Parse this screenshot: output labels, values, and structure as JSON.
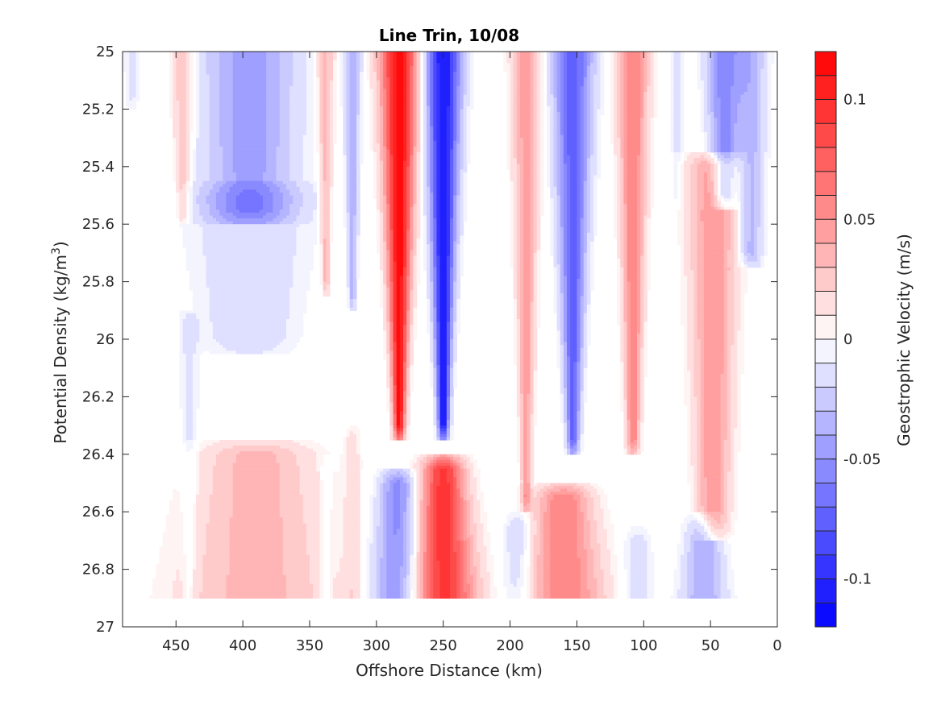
{
  "chart_data": {
    "type": "heatmap",
    "title": "Line Trin, 10/08",
    "xlabel": "Offshore Distance (km)",
    "ylabel_main": "Potential Density (kg/m",
    "ylabel_sup": "3",
    "ylabel_end": ")",
    "colorbar_label": "Geostrophic Velocity (m/s)",
    "xlim": [
      490,
      0
    ],
    "ylim": [
      25,
      27
    ],
    "x_reversed": true,
    "y_reversed": true,
    "x_ticks": [
      {
        "value": 450,
        "label": "450"
      },
      {
        "value": 400,
        "label": "400"
      },
      {
        "value": 350,
        "label": "350"
      },
      {
        "value": 300,
        "label": "300"
      },
      {
        "value": 250,
        "label": "250"
      },
      {
        "value": 200,
        "label": "200"
      },
      {
        "value": 150,
        "label": "150"
      },
      {
        "value": 100,
        "label": "100"
      },
      {
        "value": 50,
        "label": "50"
      },
      {
        "value": 0,
        "label": "0"
      }
    ],
    "y_ticks": [
      {
        "value": 25,
        "label": "25"
      },
      {
        "value": 25.2,
        "label": "25.2"
      },
      {
        "value": 25.4,
        "label": "25.4"
      },
      {
        "value": 25.6,
        "label": "25.6"
      },
      {
        "value": 25.8,
        "label": "25.8"
      },
      {
        "value": 26,
        "label": "26"
      },
      {
        "value": 26.2,
        "label": "26.2"
      },
      {
        "value": 26.4,
        "label": "26.4"
      },
      {
        "value": 26.6,
        "label": "26.6"
      },
      {
        "value": 26.8,
        "label": "26.8"
      },
      {
        "value": 27,
        "label": "27"
      }
    ],
    "colorbar": {
      "range": [
        -0.12,
        0.12
      ],
      "levels": 24,
      "negative_color": "#0000ff",
      "positive_color": "#ff0000",
      "ticks": [
        {
          "value": 0.1,
          "label": "0.1"
        },
        {
          "value": 0.05,
          "label": "0.05"
        },
        {
          "value": 0,
          "label": "0"
        },
        {
          "value": -0.05,
          "label": "-0.05"
        },
        {
          "value": -0.1,
          "label": "-0.1"
        }
      ]
    },
    "data_bottom": 26.9,
    "features": [
      {
        "x": 483,
        "xw": 8,
        "y0": 25.0,
        "y1": 25.15,
        "v": -0.012,
        "taper": 0.2
      },
      {
        "x": 445,
        "xw": 11,
        "y0": 25.0,
        "y1": 25.55,
        "v": 0.03,
        "taper": 0.5
      },
      {
        "x": 440,
        "xw": 9,
        "y0": 25.95,
        "y1": 26.9,
        "v": -0.012,
        "taper": 0.4
      },
      {
        "x": 395,
        "xw": 42,
        "y0": 25.0,
        "y1": 25.55,
        "v": -0.045,
        "taper": 0.1
      },
      {
        "x": 395,
        "xw": 55,
        "y0": 25.5,
        "y1": 26.0,
        "v": -0.02,
        "taper": 0.3
      },
      {
        "x": 338,
        "xw": 8,
        "y0": 25.0,
        "y1": 25.8,
        "v": 0.035,
        "taper": 0.6
      },
      {
        "x": 318,
        "xw": 8,
        "y0": 25.0,
        "y1": 25.85,
        "v": -0.035,
        "taper": 0.6
      },
      {
        "x": 283,
        "xw": 17,
        "y0": 25.0,
        "y1": 26.3,
        "v": 0.115,
        "taper": 0.7
      },
      {
        "x": 250,
        "xw": 16,
        "y0": 25.0,
        "y1": 26.3,
        "v": -0.11,
        "taper": 0.7
      },
      {
        "x": 188,
        "xw": 13,
        "y0": 25.0,
        "y1": 26.55,
        "v": 0.045,
        "taper": 0.7
      },
      {
        "x": 153,
        "xw": 18,
        "y0": 25.0,
        "y1": 26.35,
        "v": -0.075,
        "taper": 0.7
      },
      {
        "x": 108,
        "xw": 14,
        "y0": 25.0,
        "y1": 26.35,
        "v": 0.06,
        "taper": 0.6
      },
      {
        "x": 40,
        "xw": 16,
        "y0": 25.0,
        "y1": 25.5,
        "v": -0.055,
        "taper": 0.4
      },
      {
        "x": 20,
        "xw": 14,
        "y0": 25.0,
        "y1": 25.7,
        "v": -0.035,
        "taper": 0.3
      },
      {
        "x": 75,
        "xw": 6,
        "y0": 25.0,
        "y1": 25.5,
        "v": -0.012,
        "taper": 0.3
      },
      {
        "x": 48,
        "xw": 22,
        "y0": 25.4,
        "y1": 26.65,
        "v": 0.05,
        "taper": 0.4
      },
      {
        "x": 390,
        "xw": 48,
        "y0": 26.4,
        "y1": 26.9,
        "v": 0.035,
        "taper": -0.4
      },
      {
        "x": 338,
        "xw": 4,
        "y0": 26.45,
        "y1": 26.9,
        "v": -0.012,
        "taper": -0.3
      },
      {
        "x": 318,
        "xw": 7,
        "y0": 26.35,
        "y1": 26.9,
        "v": 0.015,
        "taper": 0.0
      },
      {
        "x": 284,
        "xw": 15,
        "y0": 26.5,
        "y1": 26.9,
        "v": -0.055,
        "taper": -0.5
      },
      {
        "x": 250,
        "xw": 18,
        "y0": 26.45,
        "y1": 26.9,
        "v": 0.095,
        "taper": -0.6
      },
      {
        "x": 193,
        "xw": 12,
        "y0": 26.65,
        "y1": 26.9,
        "v": -0.025,
        "taper": -0.4
      },
      {
        "x": 160,
        "xw": 24,
        "y0": 26.55,
        "y1": 26.9,
        "v": 0.06,
        "taper": -0.5
      },
      {
        "x": 105,
        "xw": 12,
        "y0": 26.7,
        "y1": 26.9,
        "v": -0.015,
        "taper": -0.3
      },
      {
        "x": 55,
        "xw": 14,
        "y0": 26.65,
        "y1": 26.9,
        "v": -0.04,
        "taper": -0.4
      }
    ]
  }
}
